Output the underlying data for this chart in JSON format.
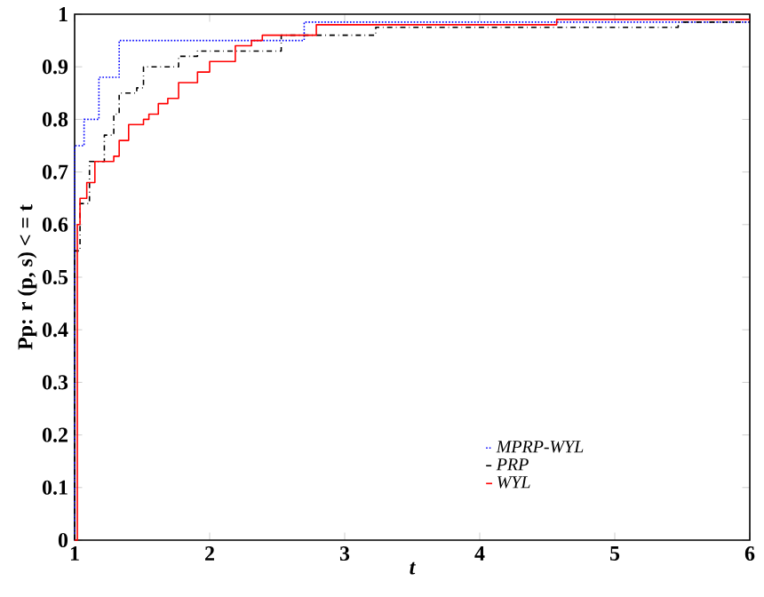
{
  "chart_data": {
    "type": "step",
    "xlabel": "t",
    "ylabel": "Pp: r (p, s) < = t",
    "xlim": [
      1,
      6
    ],
    "ylim": [
      0,
      1
    ],
    "xticks": [
      1,
      2,
      3,
      4,
      5,
      6
    ],
    "yticks": [
      0,
      {
        "value": 0.1,
        "label": "0.1"
      },
      {
        "value": 0.2,
        "label": "0.2"
      },
      {
        "value": 0.3,
        "label": "0.3"
      },
      {
        "value": 0.4,
        "label": "0.4"
      },
      {
        "value": 0.5,
        "label": "0.5"
      },
      {
        "value": 0.6,
        "label": "0.6"
      },
      {
        "value": 0.7,
        "label": "0.7"
      },
      {
        "value": 0.8,
        "label": "0.8"
      },
      {
        "value": 0.9,
        "label": "0.9"
      },
      1
    ],
    "legend": "bottom right",
    "grid": false,
    "marker": "none",
    "series": [
      {
        "name": "MPRP-WYL",
        "color": "#0000ff",
        "line_style": "dotted",
        "x": [
          1,
          1,
          1.07,
          1.18,
          1.33,
          2.7,
          6
        ],
        "values": [
          0,
          0.75,
          0.8,
          0.88,
          0.95,
          0.985,
          0.985
        ]
      },
      {
        "name": "PRP",
        "color": "#000000",
        "line_style": "dashed",
        "x": [
          1,
          1,
          1.04,
          1.11,
          1.22,
          1.29,
          1.33,
          1.46,
          1.51,
          1.77,
          1.91,
          2.53,
          3.23,
          5.47,
          6
        ],
        "values": [
          0,
          0.55,
          0.64,
          0.72,
          0.77,
          0.81,
          0.85,
          0.86,
          0.9,
          0.92,
          0.93,
          0.96,
          0.975,
          0.985,
          0.985
        ]
      },
      {
        "name": "WYL",
        "color": "#ff0000",
        "line_style": "solid",
        "x": [
          1,
          1.02,
          1.04,
          1.09,
          1.15,
          1.29,
          1.33,
          1.4,
          1.51,
          1.55,
          1.62,
          1.69,
          1.77,
          1.91,
          2.0,
          2.19,
          2.31,
          2.39,
          2.79,
          4.57,
          6
        ],
        "values": [
          0,
          0.6,
          0.65,
          0.68,
          0.72,
          0.73,
          0.76,
          0.79,
          0.8,
          0.81,
          0.83,
          0.84,
          0.87,
          0.89,
          0.91,
          0.94,
          0.95,
          0.96,
          0.98,
          0.99,
          0.99
        ]
      }
    ]
  }
}
